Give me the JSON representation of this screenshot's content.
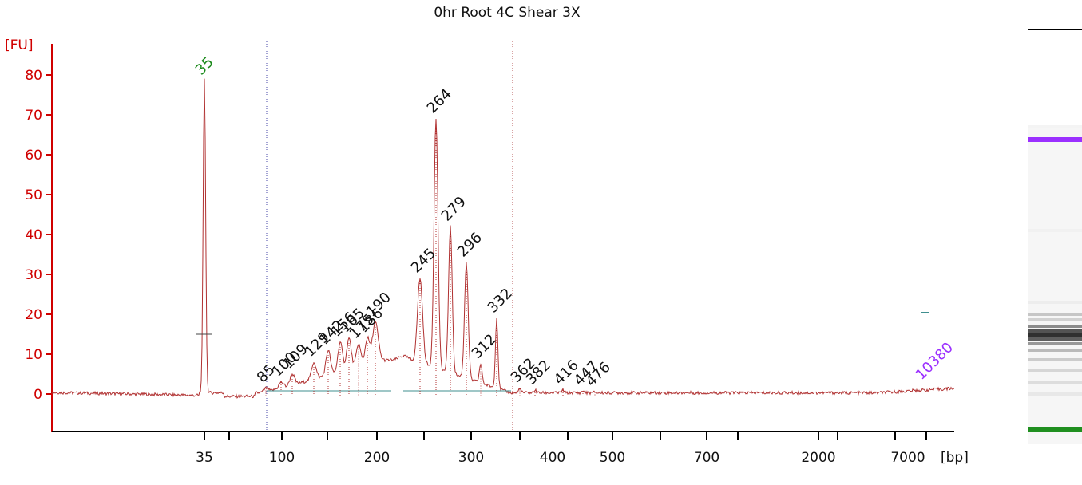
{
  "chart_data": {
    "type": "line",
    "title": "0hr Root 4C Shear 3X",
    "ylabel": "[FU]",
    "xlabel": "[bp]",
    "ylim": [
      -10,
      85
    ],
    "yticks": [
      0,
      10,
      20,
      30,
      40,
      50,
      60,
      70,
      80
    ],
    "xtick_labels": [
      "35",
      "100",
      "200",
      "300",
      "400",
      "500",
      "700",
      "2000",
      "7000"
    ],
    "colors": {
      "axis": "#d00000",
      "trace": "#b03030",
      "lower_marker": "#1a8a1a",
      "upper_marker": "#9b30ff",
      "peak_label": "#111111",
      "baseline": "#3f8f8f"
    },
    "lower_marker": {
      "label": "35",
      "x": 35,
      "value": 79
    },
    "upper_marker": {
      "label": "10380",
      "x": 10380,
      "value": 1
    },
    "peaks": [
      {
        "label": "85",
        "value": 1.5
      },
      {
        "label": "100",
        "value": 3
      },
      {
        "label": "109",
        "value": 5
      },
      {
        "label": "129",
        "value": 8
      },
      {
        "label": "142",
        "value": 11
      },
      {
        "label": "156",
        "value": 13
      },
      {
        "label": "165",
        "value": 14
      },
      {
        "label": "175",
        "value": 12.5
      },
      {
        "label": "186",
        "value": 14
      },
      {
        "label": "190",
        "value": 18
      },
      {
        "label": "245",
        "value": 29
      },
      {
        "label": "264",
        "value": 69
      },
      {
        "label": "279",
        "value": 42
      },
      {
        "label": "296",
        "value": 33
      },
      {
        "label": "312",
        "value": 7.5
      },
      {
        "label": "332",
        "value": 19
      },
      {
        "label": "362",
        "value": 1.5
      },
      {
        "label": "382",
        "value": 1
      },
      {
        "label": "416",
        "value": 1
      },
      {
        "label": "447",
        "value": 0.8
      },
      {
        "label": "476",
        "value": 0.5
      }
    ]
  }
}
